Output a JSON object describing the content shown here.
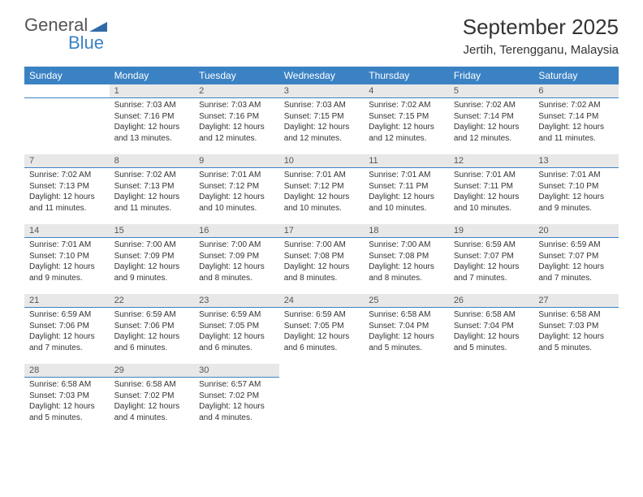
{
  "logo": {
    "text_general": "General",
    "text_blue": "Blue",
    "triangle_color": "#2f6aa8"
  },
  "title": "September 2025",
  "location": "Jertih, Terengganu, Malaysia",
  "colors": {
    "header_bg": "#3b82c4",
    "header_text": "#ffffff",
    "daynum_bg": "#e8e8e8",
    "daynum_border": "#3b82c4",
    "body_text": "#333333"
  },
  "days_of_week": [
    "Sunday",
    "Monday",
    "Tuesday",
    "Wednesday",
    "Thursday",
    "Friday",
    "Saturday"
  ],
  "first_weekday_index": 1,
  "days": [
    {
      "n": 1,
      "sunrise": "7:03 AM",
      "sunset": "7:16 PM",
      "daylight": "12 hours and 13 minutes."
    },
    {
      "n": 2,
      "sunrise": "7:03 AM",
      "sunset": "7:16 PM",
      "daylight": "12 hours and 12 minutes."
    },
    {
      "n": 3,
      "sunrise": "7:03 AM",
      "sunset": "7:15 PM",
      "daylight": "12 hours and 12 minutes."
    },
    {
      "n": 4,
      "sunrise": "7:02 AM",
      "sunset": "7:15 PM",
      "daylight": "12 hours and 12 minutes."
    },
    {
      "n": 5,
      "sunrise": "7:02 AM",
      "sunset": "7:14 PM",
      "daylight": "12 hours and 12 minutes."
    },
    {
      "n": 6,
      "sunrise": "7:02 AM",
      "sunset": "7:14 PM",
      "daylight": "12 hours and 11 minutes."
    },
    {
      "n": 7,
      "sunrise": "7:02 AM",
      "sunset": "7:13 PM",
      "daylight": "12 hours and 11 minutes."
    },
    {
      "n": 8,
      "sunrise": "7:02 AM",
      "sunset": "7:13 PM",
      "daylight": "12 hours and 11 minutes."
    },
    {
      "n": 9,
      "sunrise": "7:01 AM",
      "sunset": "7:12 PM",
      "daylight": "12 hours and 10 minutes."
    },
    {
      "n": 10,
      "sunrise": "7:01 AM",
      "sunset": "7:12 PM",
      "daylight": "12 hours and 10 minutes."
    },
    {
      "n": 11,
      "sunrise": "7:01 AM",
      "sunset": "7:11 PM",
      "daylight": "12 hours and 10 minutes."
    },
    {
      "n": 12,
      "sunrise": "7:01 AM",
      "sunset": "7:11 PM",
      "daylight": "12 hours and 10 minutes."
    },
    {
      "n": 13,
      "sunrise": "7:01 AM",
      "sunset": "7:10 PM",
      "daylight": "12 hours and 9 minutes."
    },
    {
      "n": 14,
      "sunrise": "7:01 AM",
      "sunset": "7:10 PM",
      "daylight": "12 hours and 9 minutes."
    },
    {
      "n": 15,
      "sunrise": "7:00 AM",
      "sunset": "7:09 PM",
      "daylight": "12 hours and 9 minutes."
    },
    {
      "n": 16,
      "sunrise": "7:00 AM",
      "sunset": "7:09 PM",
      "daylight": "12 hours and 8 minutes."
    },
    {
      "n": 17,
      "sunrise": "7:00 AM",
      "sunset": "7:08 PM",
      "daylight": "12 hours and 8 minutes."
    },
    {
      "n": 18,
      "sunrise": "7:00 AM",
      "sunset": "7:08 PM",
      "daylight": "12 hours and 8 minutes."
    },
    {
      "n": 19,
      "sunrise": "6:59 AM",
      "sunset": "7:07 PM",
      "daylight": "12 hours and 7 minutes."
    },
    {
      "n": 20,
      "sunrise": "6:59 AM",
      "sunset": "7:07 PM",
      "daylight": "12 hours and 7 minutes."
    },
    {
      "n": 21,
      "sunrise": "6:59 AM",
      "sunset": "7:06 PM",
      "daylight": "12 hours and 7 minutes."
    },
    {
      "n": 22,
      "sunrise": "6:59 AM",
      "sunset": "7:06 PM",
      "daylight": "12 hours and 6 minutes."
    },
    {
      "n": 23,
      "sunrise": "6:59 AM",
      "sunset": "7:05 PM",
      "daylight": "12 hours and 6 minutes."
    },
    {
      "n": 24,
      "sunrise": "6:59 AM",
      "sunset": "7:05 PM",
      "daylight": "12 hours and 6 minutes."
    },
    {
      "n": 25,
      "sunrise": "6:58 AM",
      "sunset": "7:04 PM",
      "daylight": "12 hours and 5 minutes."
    },
    {
      "n": 26,
      "sunrise": "6:58 AM",
      "sunset": "7:04 PM",
      "daylight": "12 hours and 5 minutes."
    },
    {
      "n": 27,
      "sunrise": "6:58 AM",
      "sunset": "7:03 PM",
      "daylight": "12 hours and 5 minutes."
    },
    {
      "n": 28,
      "sunrise": "6:58 AM",
      "sunset": "7:03 PM",
      "daylight": "12 hours and 5 minutes."
    },
    {
      "n": 29,
      "sunrise": "6:58 AM",
      "sunset": "7:02 PM",
      "daylight": "12 hours and 4 minutes."
    },
    {
      "n": 30,
      "sunrise": "6:57 AM",
      "sunset": "7:02 PM",
      "daylight": "12 hours and 4 minutes."
    }
  ],
  "labels": {
    "sunrise_prefix": "Sunrise: ",
    "sunset_prefix": "Sunset: ",
    "daylight_prefix": "Daylight: "
  }
}
